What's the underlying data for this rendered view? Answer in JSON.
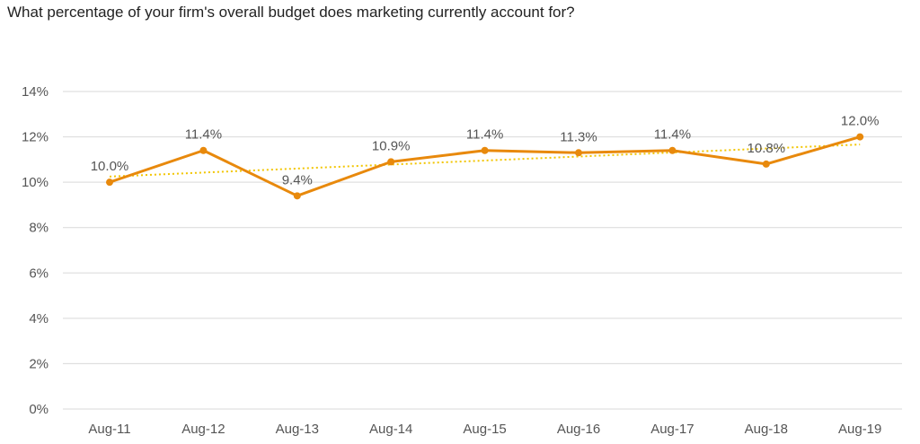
{
  "chart_data": {
    "type": "line",
    "title": "What percentage of your firm's overall budget does marketing currently account for?",
    "categories": [
      "Aug-11",
      "Aug-12",
      "Aug-13",
      "Aug-14",
      "Aug-15",
      "Aug-16",
      "Aug-17",
      "Aug-18",
      "Aug-19"
    ],
    "series": [
      {
        "values": [
          10.0,
          11.4,
          9.4,
          10.9,
          11.4,
          11.3,
          11.4,
          10.8,
          12.0
        ],
        "data_labels": [
          "10.0%",
          "11.4%",
          "9.4%",
          "10.9%",
          "11.4%",
          "11.3%",
          "11.4%",
          "10.8%",
          "12.0%"
        ],
        "color": "#E8890C"
      }
    ],
    "trendline": {
      "type": "linear",
      "style": "dotted",
      "color": "#F2C500"
    },
    "ylim": [
      0,
      14
    ],
    "yticks": [
      0,
      2,
      4,
      6,
      8,
      10,
      12,
      14
    ],
    "ytick_labels": [
      "0%",
      "2%",
      "4%",
      "6%",
      "8%",
      "10%",
      "12%",
      "14%"
    ],
    "xlabel": "",
    "ylabel": "",
    "grid": true,
    "gridline_color": "#D9D9D9"
  }
}
